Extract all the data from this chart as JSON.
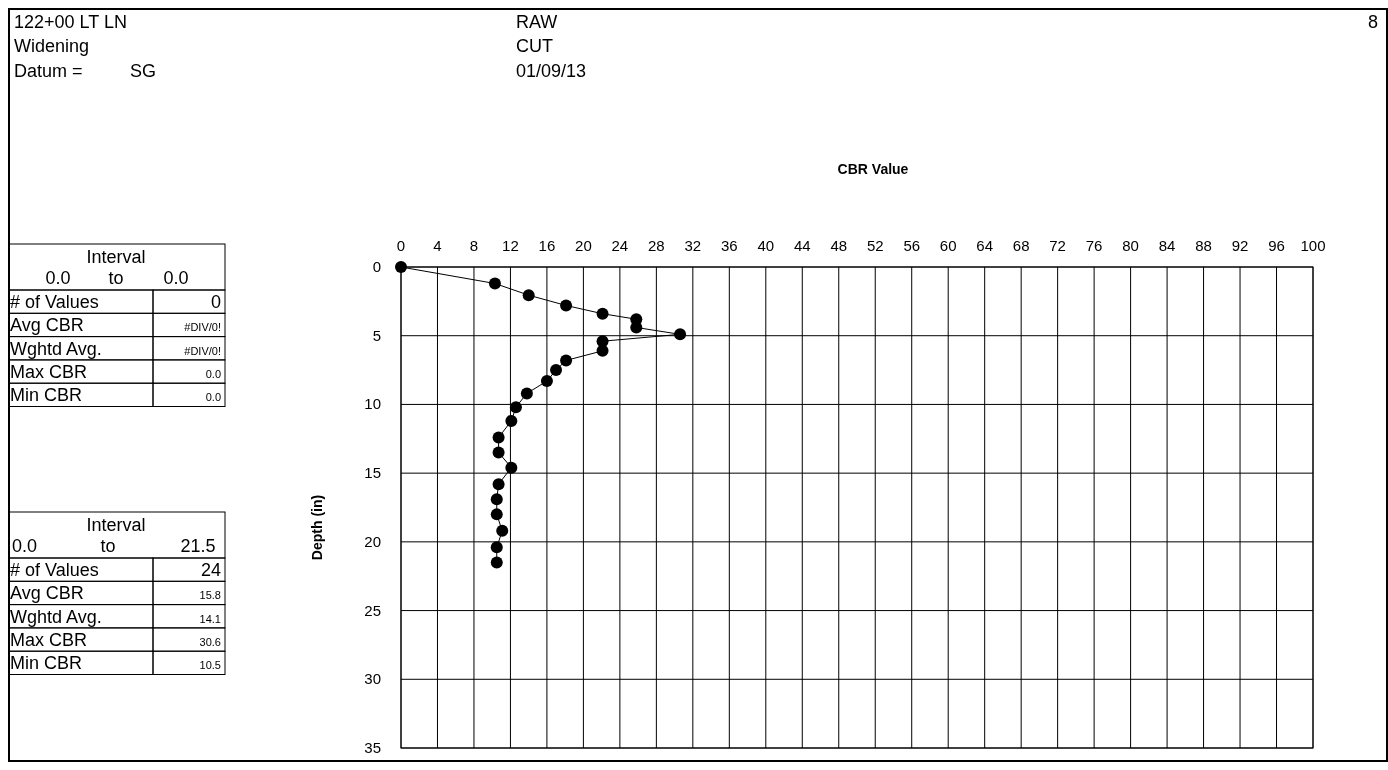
{
  "chart_data": {
    "type": "line",
    "title": "CBR Value",
    "ylabel": "Depth (in)",
    "x": [
      0,
      10.3,
      14.0,
      18.1,
      22.1,
      25.8,
      25.8,
      30.6,
      22.1,
      22.1,
      18.1,
      17.0,
      16.0,
      13.8,
      12.6,
      12.1,
      10.7,
      10.7,
      12.1,
      10.7,
      10.5,
      10.5,
      11.1,
      10.5,
      10.5
    ],
    "series": [
      {
        "color": "#000000",
        "values": [
          0,
          1.2,
          2.05,
          2.8,
          3.4,
          3.8,
          4.4,
          4.9,
          5.4,
          6.1,
          6.8,
          7.5,
          8.3,
          9.2,
          10.2,
          11.2,
          12.4,
          13.5,
          14.6,
          15.8,
          16.9,
          18.0,
          19.2,
          20.4,
          21.5
        ]
      }
    ],
    "marker": "circle",
    "line_style": "solid",
    "grid": true,
    "xlim": [
      0,
      100
    ],
    "xticks": [
      0,
      4,
      8,
      12,
      16,
      20,
      24,
      28,
      32,
      36,
      40,
      44,
      48,
      52,
      56,
      60,
      64,
      68,
      72,
      76,
      80,
      84,
      88,
      92,
      96,
      100
    ],
    "ylim": [
      35,
      0
    ],
    "yticks": [
      0,
      5,
      10,
      15,
      20,
      25,
      30,
      35
    ],
    "annotations": [
      "122+00 LT LN",
      "Widening",
      "Datum =",
      "SG",
      "RAW",
      "CUT",
      "01/09/13",
      "8",
      "Interval",
      "0.0",
      "to",
      "0.0",
      "# of Values",
      "0",
      "Avg CBR",
      "#DIV/0!",
      "Wghtd Avg.",
      "#DIV/0!",
      "Max CBR",
      "0.0",
      "Min CBR",
      "0.0",
      "Interval",
      "0.0",
      "to",
      "21.5",
      "# of Values",
      "24",
      "Avg CBR",
      "15.8",
      "Wghtd Avg.",
      "14.1",
      "Max CBR",
      "30.6",
      "Min CBR",
      "10.5"
    ]
  }
}
